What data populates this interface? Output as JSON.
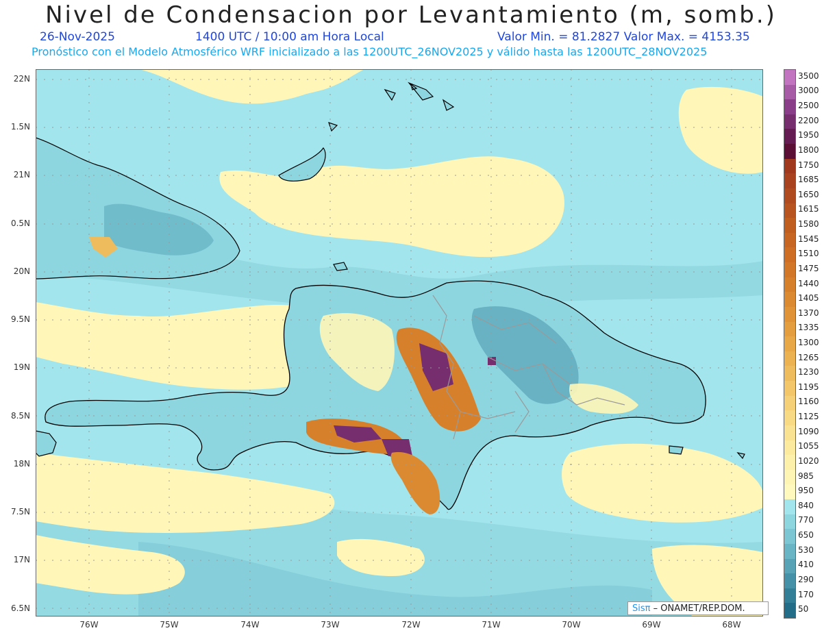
{
  "title": "Nivel de Condensacion por Levantamiento (m, somb.)",
  "date": "26-Nov-2025",
  "time": "1400 UTC / 10:00 am Hora Local",
  "value_min_max": "Valor Min. = 81.2827  Valor Max. = 4153.35",
  "subtitle": "Pronóstico con el Modelo Atmosférico WRF inicializado a las 1200UTC_26NOV2025 y válido hasta las  1200UTC_28NOV2025",
  "lat_labels": [
    "22N",
    "1.5N",
    "21N",
    "0.5N",
    "20N",
    "9.5N",
    "19N",
    "8.5N",
    "18N",
    "7.5N",
    "17N",
    "6.5N"
  ],
  "lon_labels": [
    "76W",
    "75W",
    "74W",
    "73W",
    "72W",
    "71W",
    "70W",
    "69W",
    "68W"
  ],
  "colorbar": {
    "labels": [
      "3500",
      "3000",
      "2500",
      "2200",
      "1950",
      "1800",
      "1750",
      "1685",
      "1650",
      "1615",
      "1580",
      "1545",
      "1510",
      "1475",
      "1440",
      "1405",
      "1370",
      "1335",
      "1300",
      "1265",
      "1230",
      "1195",
      "1160",
      "1125",
      "1090",
      "1055",
      "1020",
      "985",
      "950",
      "840",
      "770",
      "650",
      "530",
      "410",
      "290",
      "170",
      "50"
    ],
    "colors": [
      "#c274c0",
      "#a75aa6",
      "#8a3e8a",
      "#772e6e",
      "#651c53",
      "#5c0f35",
      "#a0381e",
      "#a8421f",
      "#b04b1f",
      "#b8541f",
      "#c05e20",
      "#c76622",
      "#cd6e24",
      "#d27727",
      "#d7802b",
      "#dc8a31",
      "#e09437",
      "#e49e3f",
      "#e8a848",
      "#ecb252",
      "#efbc5d",
      "#f2c669",
      "#f5d076",
      "#f8da84",
      "#fae293",
      "#fcea9f",
      "#fdf0ab",
      "#fef5b5",
      "#fff9be",
      "#a3e5ec",
      "#8dd6e0",
      "#7cc6d3",
      "#6ab5c5",
      "#58a3b6",
      "#4591a7",
      "#347f98",
      "#236d89"
    ]
  },
  "credit": {
    "logo": "Sisπ",
    "text": " – ONAMET/REP.DOM."
  },
  "map_colors": {
    "ocean": "#a3e5ec",
    "yellow": "#fff6b8",
    "teal": "#7fc9d6",
    "orange": "#d7802b",
    "purple": "#772e6e",
    "coast": "#000000",
    "provinces": "#9a9a9a"
  }
}
